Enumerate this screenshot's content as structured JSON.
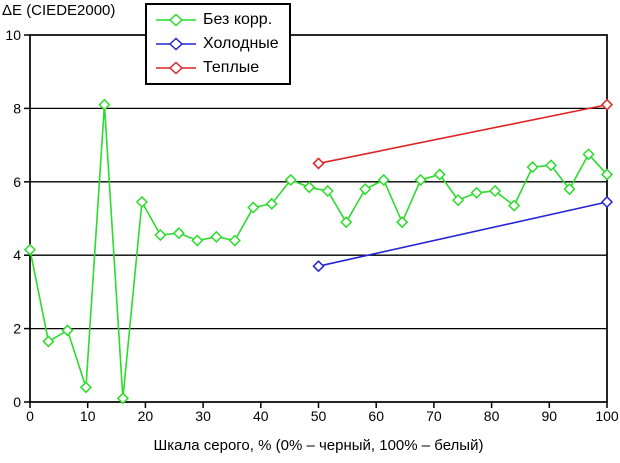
{
  "chart_data": {
    "type": "line",
    "title": "",
    "ylabel": "ΔE (CIEDE2000)",
    "xlabel": "Шкала серого, % (0% – черный, 100% – белый)",
    "xlim": [
      0,
      100
    ],
    "ylim": [
      0,
      10
    ],
    "x_ticks": [
      0,
      10,
      20,
      30,
      40,
      50,
      60,
      70,
      80,
      90,
      100
    ],
    "y_ticks": [
      0,
      2,
      4,
      6,
      8,
      10
    ],
    "grid": "horizontal-only",
    "frame": true,
    "axis_color": "#000000",
    "legend_position": "top-inside",
    "marker": "open-diamond",
    "series": [
      {
        "id": "no_correction",
        "label": "Без корр.",
        "color": "#2bdc2b",
        "x": [
          0,
          3.2,
          6.5,
          9.7,
          12.9,
          16.1,
          19.4,
          22.6,
          25.8,
          29.0,
          32.3,
          35.5,
          38.7,
          41.9,
          45.2,
          48.4,
          51.6,
          54.8,
          58.1,
          61.3,
          64.5,
          67.7,
          71.0,
          74.2,
          77.4,
          80.6,
          83.9,
          87.1,
          90.3,
          93.5,
          96.8,
          100
        ],
        "y": [
          4.15,
          1.65,
          1.95,
          0.4,
          8.1,
          0.1,
          5.45,
          4.55,
          4.6,
          4.4,
          4.5,
          4.4,
          5.3,
          5.4,
          6.05,
          5.85,
          5.75,
          4.9,
          5.8,
          6.05,
          4.9,
          6.05,
          6.2,
          5.5,
          5.7,
          5.75,
          5.35,
          6.4,
          6.45,
          5.8,
          6.75,
          6.2
        ]
      },
      {
        "id": "cold",
        "label": "Холодные",
        "color": "#2424d8",
        "x": [
          50,
          100
        ],
        "y": [
          3.7,
          5.45
        ]
      },
      {
        "id": "warm",
        "label": "Теплые",
        "color": "#dc2424",
        "x": [
          50,
          100
        ],
        "y": [
          6.5,
          8.1
        ]
      }
    ]
  }
}
